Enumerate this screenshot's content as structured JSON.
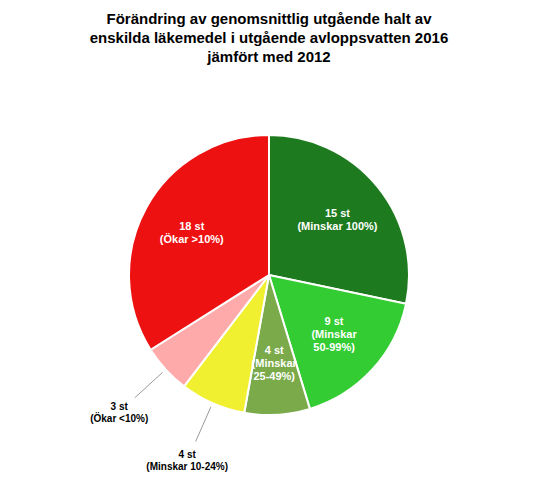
{
  "chart_data": {
    "type": "pie",
    "title": "Förändring av genomsnittlig utgående halt av\nenskilda läkemedel i utgående avloppsvatten 2016\njämfört med 2012",
    "categories": [
      "(Minskar 100%)",
      "(Minskar\n50-99%)",
      "(Minskar\n25-49%)",
      "(Minskar 10-24%)",
      "(Ökar <10%)",
      "(Ökar >10%)"
    ],
    "values": [
      15,
      9,
      4,
      4,
      3,
      18
    ],
    "value_labels": [
      "15 st",
      "9 st",
      "4 st",
      "4 st",
      "3 st",
      "18 st"
    ],
    "colors": [
      "#1e7a1e",
      "#33cc33",
      "#7aaa4a",
      "#f0f030",
      "#ffaaaa",
      "#ee1111"
    ],
    "data_labels": true
  }
}
